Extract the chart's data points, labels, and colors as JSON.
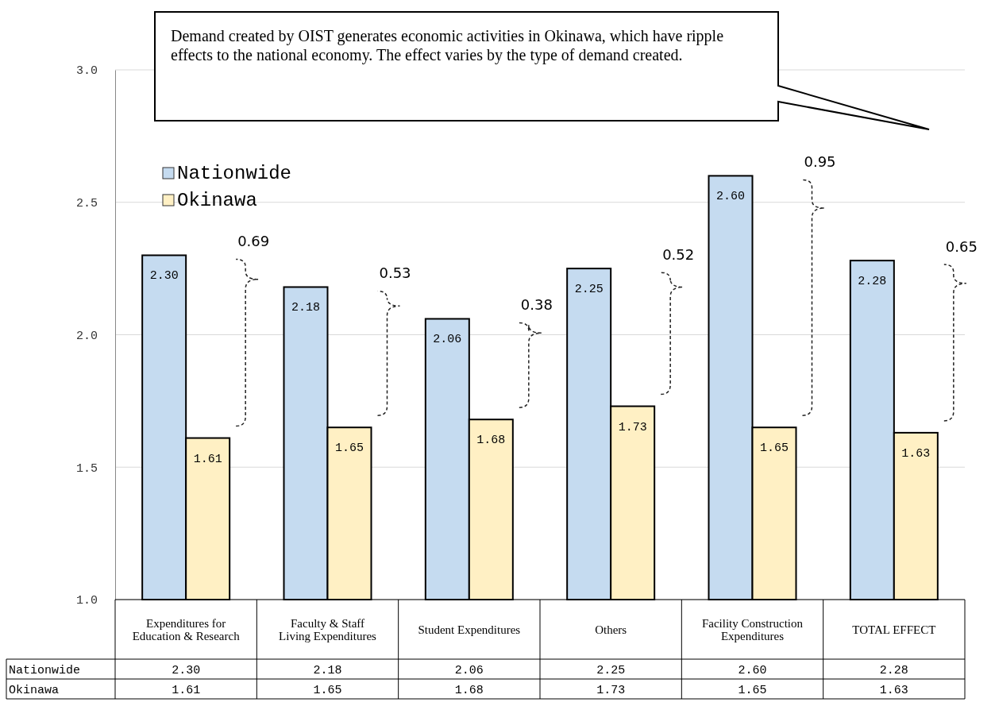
{
  "chart_data": {
    "type": "bar",
    "categories": [
      "Expenditures for Education & Research",
      "Faculty & Staff Living Expenditures",
      "Student Expenditures",
      "Others",
      "Facility Construction Expenditures",
      "TOTAL EFFECT"
    ],
    "series": [
      {
        "name": "Nationwide",
        "color": "#c5dbf0",
        "values": [
          2.3,
          2.18,
          2.06,
          2.25,
          2.6,
          2.28
        ],
        "value_labels": [
          "2.30",
          "2.18",
          "2.06",
          "2.25",
          "2.60",
          "2.28"
        ]
      },
      {
        "name": "Okinawa",
        "color": "#fff0c4",
        "values": [
          1.61,
          1.65,
          1.68,
          1.73,
          1.65,
          1.63
        ],
        "value_labels": [
          "1.61",
          "1.65",
          "1.68",
          "1.73",
          "1.65",
          "1.63"
        ]
      }
    ],
    "ylim": [
      1,
      3
    ],
    "yticks": [
      {
        "value": 1,
        "label": "1.0"
      },
      {
        "value": 1.5,
        "label": "1.5"
      },
      {
        "value": 2,
        "label": "2.0"
      },
      {
        "value": 2.5,
        "label": "2.5"
      },
      {
        "value": 3,
        "label": "3.0"
      }
    ],
    "grid": "y",
    "legend": "top left",
    "annotations": [
      "Demand created by OIST generates economic activities in Okinawa, which have ripple effects to the national economy. The effect varies by the type of demand created.",
      "0.69",
      "0.53",
      "0.38",
      "0.52",
      "0.95",
      "0.65"
    ]
  }
}
